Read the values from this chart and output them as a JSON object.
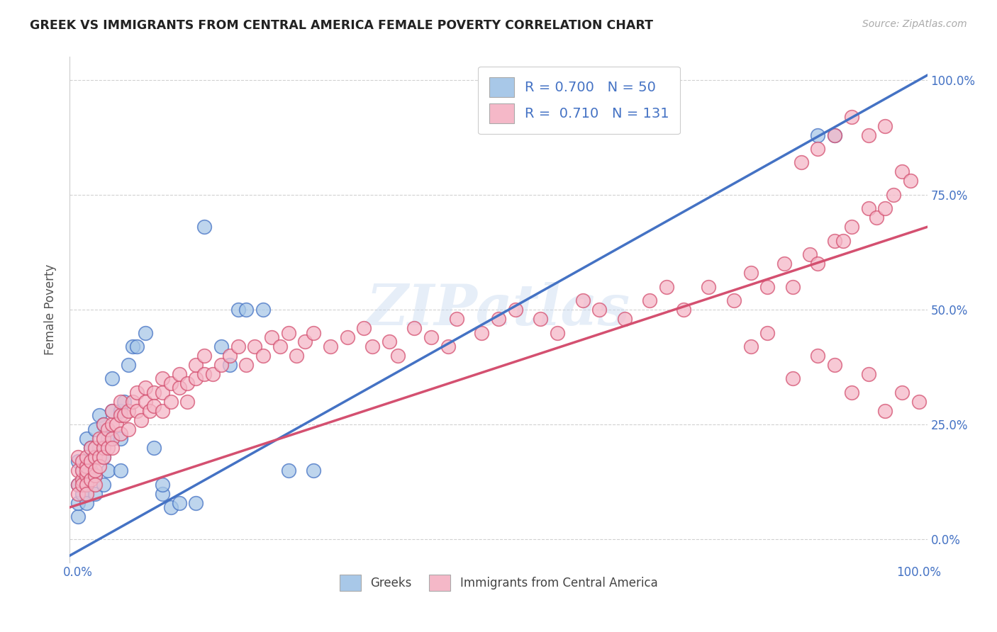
{
  "title": "GREEK VS IMMIGRANTS FROM CENTRAL AMERICA FEMALE POVERTY CORRELATION CHART",
  "source": "Source: ZipAtlas.com",
  "ylabel": "Female Poverty",
  "watermark": "ZIPatlas",
  "legend_greek": "R = 0.700   N = 50",
  "legend_imm": "R =  0.710   N = 131",
  "greek_color": "#a8c8e8",
  "greek_line_color": "#4472c4",
  "imm_color": "#f5b8c8",
  "imm_line_color": "#d45070",
  "background_color": "#ffffff",
  "grid_color": "#cccccc",
  "xlim": [
    -0.01,
    1.01
  ],
  "ylim": [
    -0.05,
    1.05
  ],
  "greek_line": {
    "x0": -0.01,
    "x1": 1.01,
    "y0": -0.035,
    "y1": 1.01
  },
  "imm_line": {
    "x0": -0.01,
    "x1": 1.01,
    "y0": 0.07,
    "y1": 0.68
  },
  "xticks": [
    0.0,
    1.0
  ],
  "xtick_labels": [
    "0.0%",
    "100.0%"
  ],
  "ytick_labels_right": [
    "0.0%",
    "25.0%",
    "50.0%",
    "75.0%",
    "100.0%"
  ],
  "yticks_right": [
    0.0,
    0.25,
    0.5,
    0.75,
    1.0
  ],
  "grid_yticks": [
    0.0,
    0.25,
    0.5,
    0.75,
    1.0
  ],
  "greek_scatter_x": [
    0.0,
    0.0,
    0.0,
    0.0,
    0.005,
    0.005,
    0.01,
    0.01,
    0.01,
    0.01,
    0.015,
    0.015,
    0.02,
    0.02,
    0.02,
    0.02,
    0.025,
    0.025,
    0.03,
    0.03,
    0.03,
    0.035,
    0.035,
    0.04,
    0.04,
    0.04,
    0.05,
    0.05,
    0.05,
    0.055,
    0.06,
    0.065,
    0.07,
    0.08,
    0.09,
    0.1,
    0.1,
    0.11,
    0.12,
    0.14,
    0.15,
    0.17,
    0.18,
    0.19,
    0.2,
    0.22,
    0.25,
    0.28,
    0.88,
    0.9
  ],
  "greek_scatter_y": [
    0.05,
    0.08,
    0.12,
    0.17,
    0.1,
    0.15,
    0.08,
    0.12,
    0.17,
    0.22,
    0.15,
    0.2,
    0.1,
    0.14,
    0.18,
    0.24,
    0.2,
    0.27,
    0.12,
    0.18,
    0.25,
    0.15,
    0.22,
    0.22,
    0.28,
    0.35,
    0.15,
    0.22,
    0.28,
    0.3,
    0.38,
    0.42,
    0.42,
    0.45,
    0.2,
    0.1,
    0.12,
    0.07,
    0.08,
    0.08,
    0.68,
    0.42,
    0.38,
    0.5,
    0.5,
    0.5,
    0.15,
    0.15,
    0.88,
    0.88
  ],
  "imm_scatter_x": [
    0.0,
    0.0,
    0.0,
    0.0,
    0.005,
    0.005,
    0.005,
    0.005,
    0.01,
    0.01,
    0.01,
    0.01,
    0.01,
    0.01,
    0.015,
    0.015,
    0.015,
    0.02,
    0.02,
    0.02,
    0.02,
    0.02,
    0.025,
    0.025,
    0.025,
    0.03,
    0.03,
    0.03,
    0.03,
    0.035,
    0.035,
    0.04,
    0.04,
    0.04,
    0.04,
    0.045,
    0.05,
    0.05,
    0.05,
    0.055,
    0.06,
    0.06,
    0.065,
    0.07,
    0.07,
    0.075,
    0.08,
    0.08,
    0.085,
    0.09,
    0.09,
    0.1,
    0.1,
    0.1,
    0.11,
    0.11,
    0.12,
    0.12,
    0.13,
    0.13,
    0.14,
    0.14,
    0.15,
    0.15,
    0.16,
    0.17,
    0.18,
    0.19,
    0.2,
    0.21,
    0.22,
    0.23,
    0.24,
    0.25,
    0.26,
    0.27,
    0.28,
    0.3,
    0.32,
    0.34,
    0.35,
    0.37,
    0.38,
    0.4,
    0.42,
    0.44,
    0.45,
    0.48,
    0.5,
    0.52,
    0.55,
    0.57,
    0.6,
    0.62,
    0.65,
    0.68,
    0.7,
    0.72,
    0.75,
    0.78,
    0.8,
    0.82,
    0.84,
    0.85,
    0.87,
    0.88,
    0.9,
    0.91,
    0.92,
    0.94,
    0.95,
    0.96,
    0.97,
    0.98,
    0.99,
    0.8,
    0.82,
    0.85,
    0.88,
    0.9,
    0.92,
    0.94,
    0.96,
    0.98,
    1.0,
    0.86,
    0.88,
    0.9,
    0.92,
    0.94,
    0.96
  ],
  "imm_scatter_y": [
    0.12,
    0.15,
    0.1,
    0.18,
    0.13,
    0.15,
    0.17,
    0.12,
    0.14,
    0.16,
    0.12,
    0.1,
    0.15,
    0.18,
    0.13,
    0.17,
    0.2,
    0.14,
    0.18,
    0.2,
    0.15,
    0.12,
    0.18,
    0.22,
    0.16,
    0.2,
    0.22,
    0.18,
    0.25,
    0.2,
    0.24,
    0.22,
    0.25,
    0.28,
    0.2,
    0.25,
    0.23,
    0.27,
    0.3,
    0.27,
    0.28,
    0.24,
    0.3,
    0.28,
    0.32,
    0.26,
    0.3,
    0.33,
    0.28,
    0.32,
    0.29,
    0.32,
    0.35,
    0.28,
    0.34,
    0.3,
    0.33,
    0.36,
    0.3,
    0.34,
    0.35,
    0.38,
    0.36,
    0.4,
    0.36,
    0.38,
    0.4,
    0.42,
    0.38,
    0.42,
    0.4,
    0.44,
    0.42,
    0.45,
    0.4,
    0.43,
    0.45,
    0.42,
    0.44,
    0.46,
    0.42,
    0.43,
    0.4,
    0.46,
    0.44,
    0.42,
    0.48,
    0.45,
    0.48,
    0.5,
    0.48,
    0.45,
    0.52,
    0.5,
    0.48,
    0.52,
    0.55,
    0.5,
    0.55,
    0.52,
    0.58,
    0.55,
    0.6,
    0.55,
    0.62,
    0.6,
    0.65,
    0.65,
    0.68,
    0.72,
    0.7,
    0.72,
    0.75,
    0.8,
    0.78,
    0.42,
    0.45,
    0.35,
    0.4,
    0.38,
    0.32,
    0.36,
    0.28,
    0.32,
    0.3,
    0.82,
    0.85,
    0.88,
    0.92,
    0.88,
    0.9
  ]
}
